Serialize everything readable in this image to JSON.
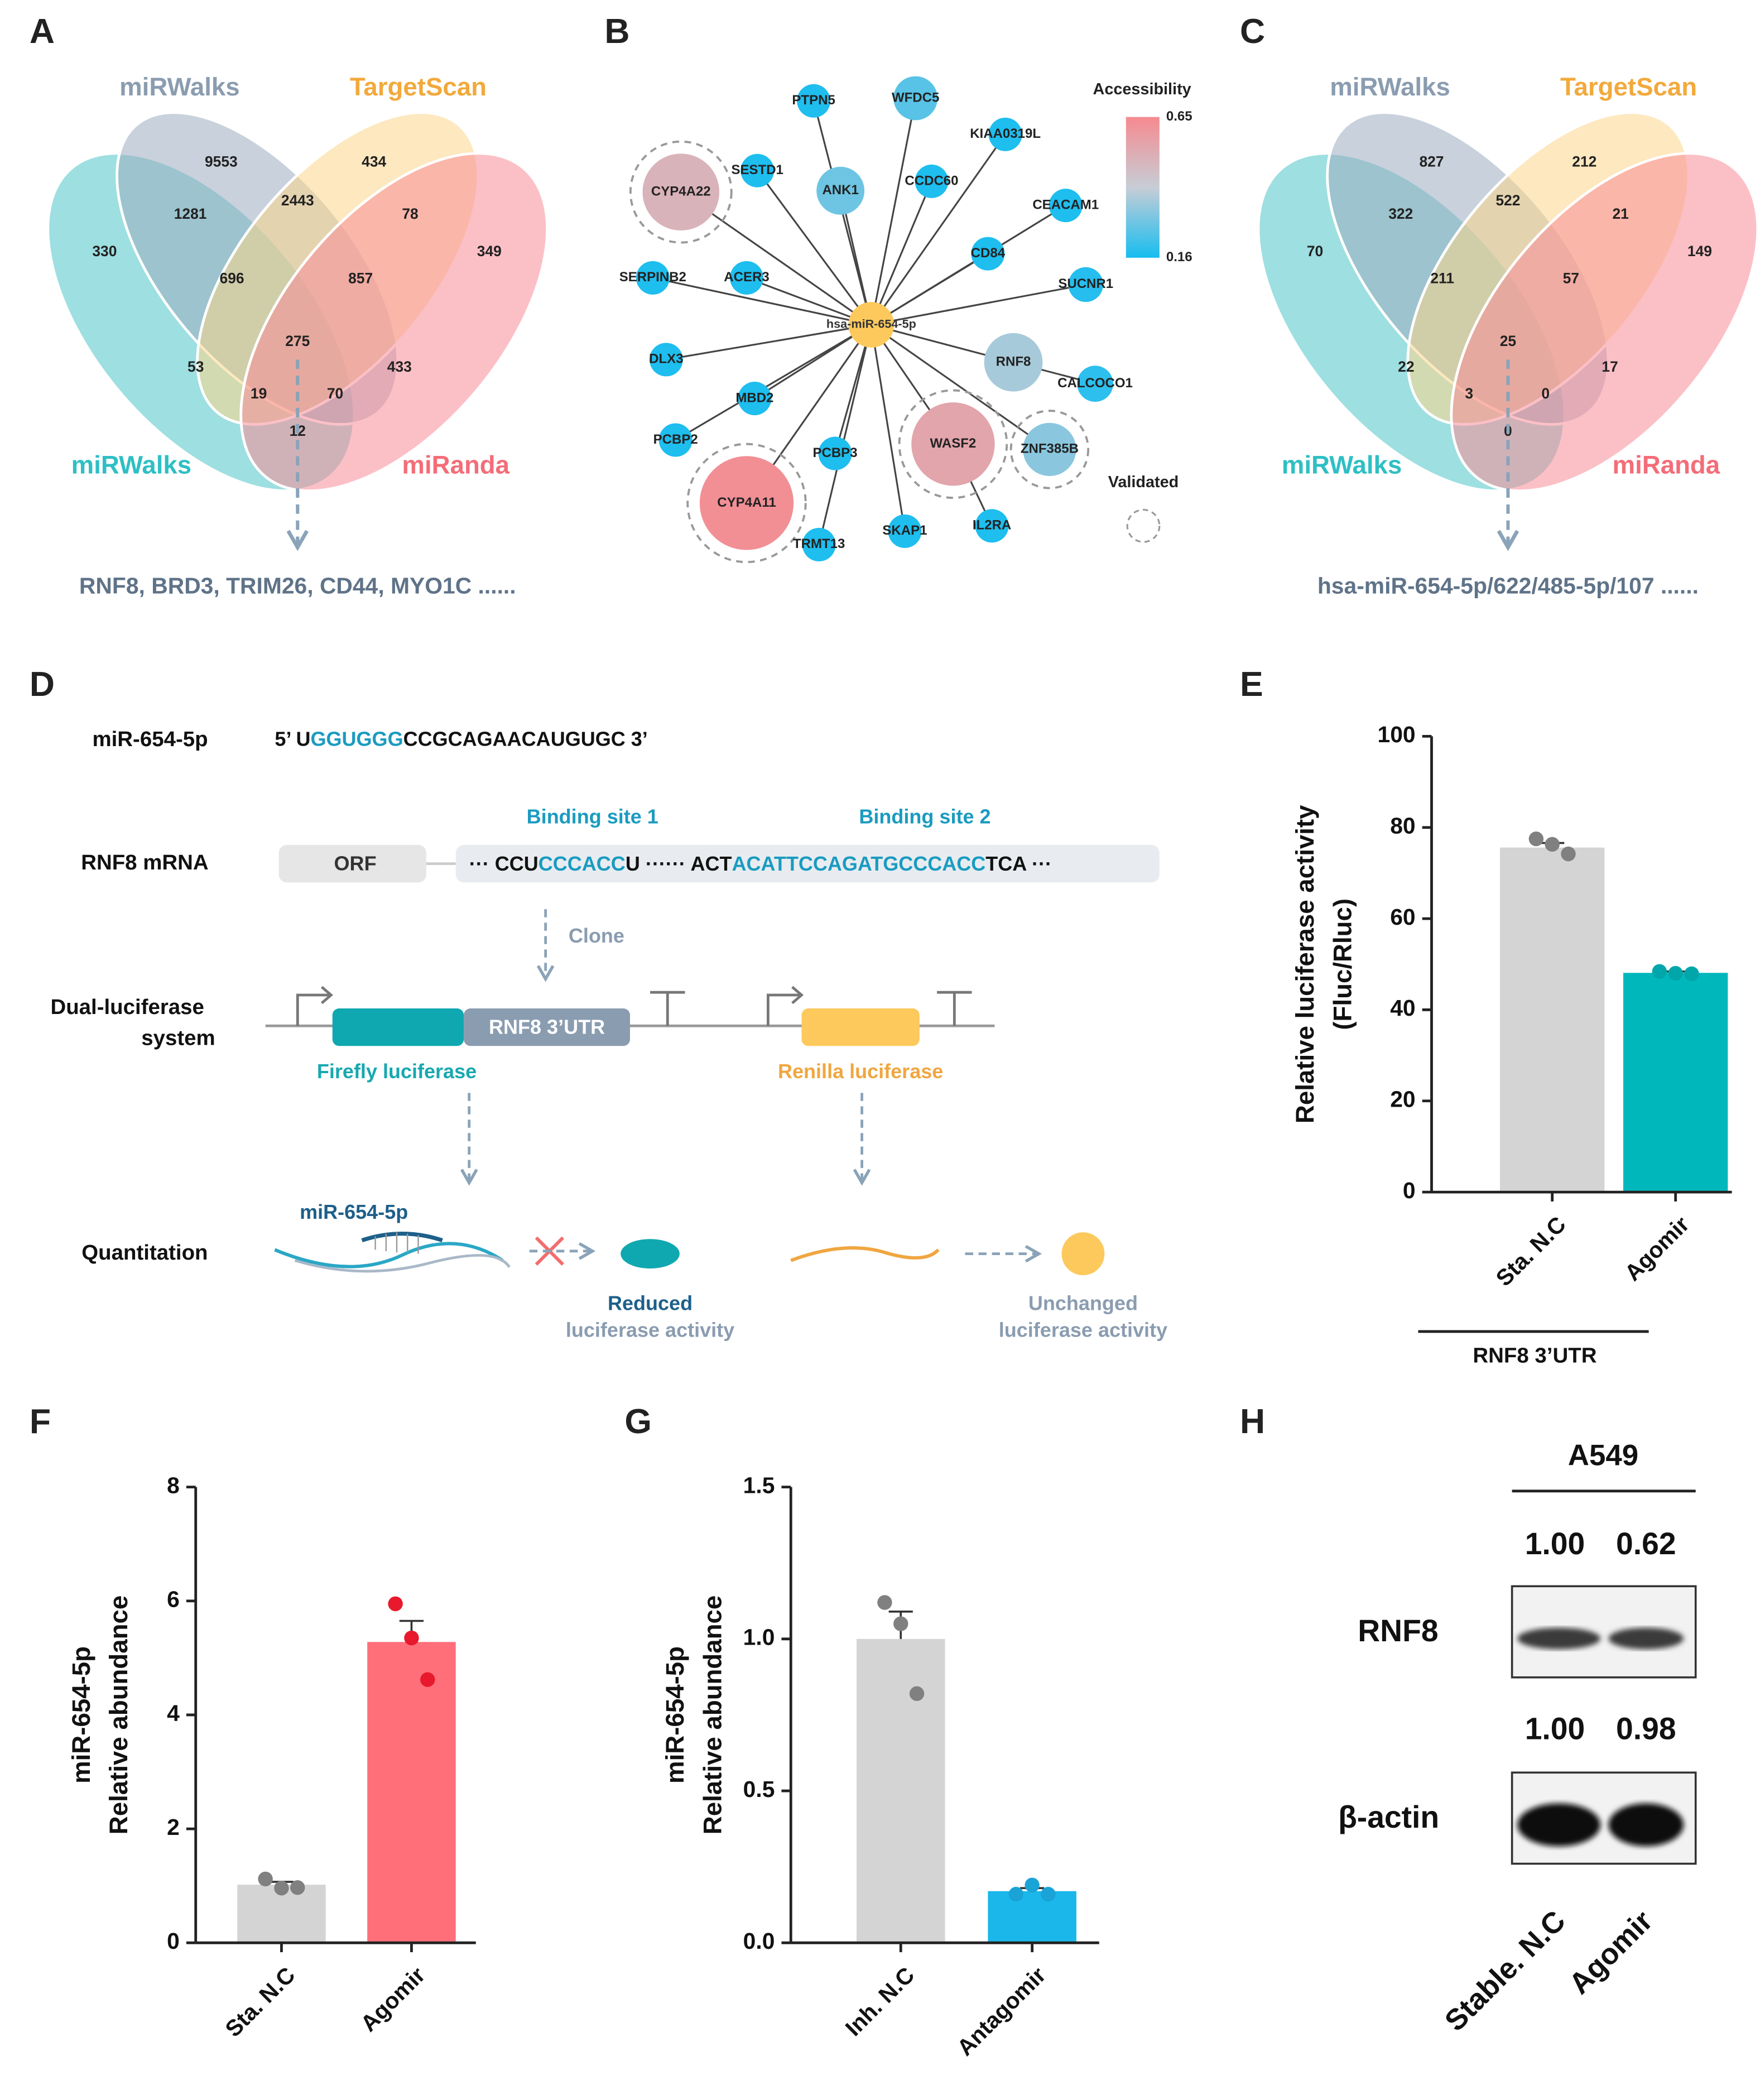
{
  "panel_labels": [
    "A",
    "B",
    "C",
    "D",
    "E",
    "F",
    "G",
    "H"
  ],
  "venn_a": {
    "set_labels": [
      "miRWalks",
      "TargetScan",
      "miRWalks",
      "miRanda"
    ],
    "regions": [
      330,
      9553,
      434,
      349,
      1281,
      2443,
      78,
      696,
      857,
      53,
      275,
      433,
      19,
      70,
      12
    ],
    "note": "RNF8, BRD3, TRIM26, CD44, MYO1C ......"
  },
  "venn_c": {
    "set_labels": [
      "miRWalks",
      "TargetScan",
      "miRWalks",
      "miRanda"
    ],
    "regions": [
      70,
      827,
      212,
      149,
      322,
      522,
      21,
      211,
      57,
      22,
      25,
      17,
      3,
      0,
      0
    ],
    "note": "hsa-miR-654-5p/622/485-5p/107 ......"
  },
  "network": {
    "center": "hsa-miR-654-5p",
    "legend_title": "Accessibility",
    "scale": [
      0.16,
      0.65
    ],
    "validated_label": "Validated",
    "nodes": [
      {
        "label": "PTPN5",
        "accessibility": 0.17,
        "validated": false
      },
      {
        "label": "WFDC5",
        "accessibility": 0.25,
        "validated": false
      },
      {
        "label": "KIAA0319L",
        "accessibility": 0.17,
        "validated": false
      },
      {
        "label": "SESTD1",
        "accessibility": 0.17,
        "validated": false
      },
      {
        "label": "CYP4A22",
        "accessibility": 0.5,
        "validated": true
      },
      {
        "label": "ANK1",
        "accessibility": 0.28,
        "validated": false
      },
      {
        "label": "CCDC60",
        "accessibility": 0.17,
        "validated": false
      },
      {
        "label": "CEACAM1",
        "accessibility": 0.17,
        "validated": false
      },
      {
        "label": "CD84",
        "accessibility": 0.17,
        "validated": false
      },
      {
        "label": "SUCNR1",
        "accessibility": 0.18,
        "validated": false
      },
      {
        "label": "SERPINB2",
        "accessibility": 0.17,
        "validated": false
      },
      {
        "label": "ACER3",
        "accessibility": 0.17,
        "validated": false
      },
      {
        "label": "DLX3",
        "accessibility": 0.17,
        "validated": false
      },
      {
        "label": "RNF8",
        "accessibility": 0.36,
        "validated": false
      },
      {
        "label": "CALCOCO1",
        "accessibility": 0.19,
        "validated": false
      },
      {
        "label": "MBD2",
        "accessibility": 0.17,
        "validated": false
      },
      {
        "label": "PCBP2",
        "accessibility": 0.17,
        "validated": false
      },
      {
        "label": "PCBP3",
        "accessibility": 0.17,
        "validated": false
      },
      {
        "label": "WASF2",
        "accessibility": 0.55,
        "validated": true
      },
      {
        "label": "ZNF385B",
        "accessibility": 0.32,
        "validated": true
      },
      {
        "label": "CYP4A11",
        "accessibility": 0.63,
        "validated": true
      },
      {
        "label": "TRMT13",
        "accessibility": 0.17,
        "validated": false
      },
      {
        "label": "SKAP1",
        "accessibility": 0.17,
        "validated": false
      },
      {
        "label": "IL2RA",
        "accessibility": 0.17,
        "validated": false
      }
    ]
  },
  "diagram": {
    "mir_label": "miR-654-5p",
    "mir_seq": [
      "5’ U",
      "GGUGGG",
      "CCGCAGAACAUGUGC 3’"
    ],
    "mrna_label": "RNF8 mRNA",
    "orf": "ORF",
    "mrna_seq": [
      "··· CCU",
      "CCCACC",
      "U ······ ACT",
      "ACATTCCAGATGCCCACC",
      "TCA ···"
    ],
    "site1": "Binding site 1",
    "site2": "Binding site 2",
    "clone": "Clone",
    "system_label": [
      "Dual-luciferase",
      "system"
    ],
    "utr": "RNF8 3’UTR",
    "firefly": "Firefly luciferase",
    "renilla": "Renilla luciferase",
    "quant_label": "Quantitation",
    "quant_mir": "miR-654-5p",
    "reduced": [
      "Reduced",
      "luciferase activity"
    ],
    "unchanged": [
      "Unchanged",
      "luciferase activity"
    ]
  },
  "blot": {
    "cell_line": "A549",
    "rows": [
      {
        "label": "RNF8",
        "quant": [
          "1.00",
          "0.62"
        ]
      },
      {
        "label": "β-actin",
        "quant": [
          "1.00",
          "0.98"
        ]
      }
    ],
    "lanes": [
      "Stable. N.C",
      "Agomir"
    ]
  },
  "chart_data": [
    {
      "type": "bar",
      "y_label": [
        "Relative luciferase activity",
        "(Fluc/Rluc)"
      ],
      "categories": [
        "Sta. N.C",
        "Agomir"
      ],
      "values": [
        75.6,
        48.1
      ],
      "errors": [
        1.0,
        0.3
      ],
      "points": [
        [
          77.5,
          76.3,
          74.2
        ],
        [
          48.4,
          48.0,
          47.9
        ]
      ],
      "colors": [
        "#d4d4d4",
        "#00b8bc"
      ],
      "point_colors": [
        "#808080",
        "#00a6aa"
      ],
      "group_label": "RNF8 3’UTR",
      "ylim": [
        0,
        100
      ],
      "yticks": [
        0,
        20,
        40,
        60,
        80,
        100
      ]
    },
    {
      "type": "bar",
      "y_label": [
        "miR-654-5p",
        "Relative abundance"
      ],
      "categories": [
        "Sta. N.C",
        "Agomir"
      ],
      "values": [
        1.02,
        5.28
      ],
      "errors": [
        0.05,
        0.37
      ],
      "points": [
        [
          1.12,
          0.96,
          0.97
        ],
        [
          5.95,
          5.35,
          4.62
        ]
      ],
      "colors": [
        "#d4d4d4",
        "#ff6f7a"
      ],
      "point_colors": [
        "#808080",
        "#e8192c"
      ],
      "ylim": [
        0,
        8
      ],
      "yticks": [
        0,
        2,
        4,
        6,
        8
      ]
    },
    {
      "type": "bar",
      "y_label": [
        "miR-654-5p",
        "Relative abundance"
      ],
      "categories": [
        "Inh. N.C",
        "Antagomir"
      ],
      "values": [
        1.0,
        0.17
      ],
      "errors": [
        0.09,
        0.01
      ],
      "points": [
        [
          1.12,
          1.05,
          0.82
        ],
        [
          0.16,
          0.19,
          0.16
        ]
      ],
      "colors": [
        "#d4d4d4",
        "#1bb7ea"
      ],
      "point_colors": [
        "#808080",
        "#1aa3d6"
      ],
      "ylim": [
        0,
        1.5
      ],
      "yticks": [
        {
          "value": 0,
          "label": "0.0"
        },
        {
          "value": 0.5,
          "label": "0.5"
        },
        {
          "value": 1,
          "label": "1.0"
        },
        {
          "value": 1.5,
          "label": "1.5"
        }
      ]
    }
  ]
}
